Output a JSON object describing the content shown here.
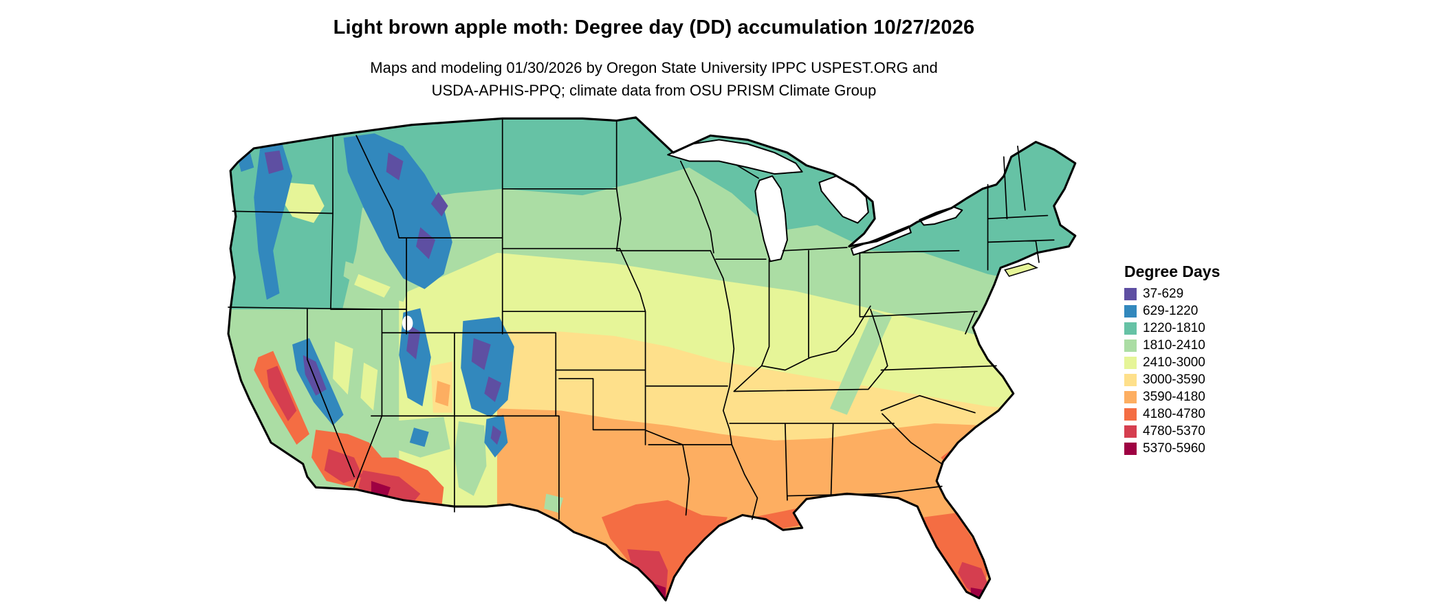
{
  "header": {
    "title": "Light brown apple moth: Degree day (DD) accumulation 10/27/2026",
    "subtitle_line1": "Maps and modeling 01/30/2026 by Oregon State University IPPC USPEST.ORG and",
    "subtitle_line2": "USDA-APHIS-PPQ; climate data from OSU PRISM Climate Group"
  },
  "legend": {
    "title": "Degree Days",
    "items": [
      {
        "label": "37-629",
        "color": "#5e4fa2"
      },
      {
        "label": "629-1220",
        "color": "#3288bd"
      },
      {
        "label": "1220-1810",
        "color": "#66c2a5"
      },
      {
        "label": "1810-2410",
        "color": "#abdda4"
      },
      {
        "label": "2410-3000",
        "color": "#e6f598"
      },
      {
        "label": "3000-3590",
        "color": "#fee08b"
      },
      {
        "label": "3590-4180",
        "color": "#fdae61"
      },
      {
        "label": "4180-4780",
        "color": "#f46d43"
      },
      {
        "label": "4780-5370",
        "color": "#d53e4f"
      },
      {
        "label": "5370-5960",
        "color": "#9e0142"
      }
    ]
  },
  "palette": {
    "bin1": "#5e4fa2",
    "bin2": "#3288bd",
    "bin3": "#66c2a5",
    "bin4": "#abdda4",
    "bin5": "#e6f598",
    "bin6": "#fee08b",
    "bin7": "#fdae61",
    "bin8": "#f46d43",
    "bin9": "#d53e4f",
    "bin10": "#9e0142",
    "water": "#ffffff",
    "border": "#000000"
  },
  "chart_data": {
    "type": "heatmap",
    "subtype": "geographic-raster-choropleth",
    "region": "Continental United States",
    "title": "Light brown apple moth: Degree day (DD) accumulation 10/27/2026",
    "legend_title": "Degree Days",
    "value_range": [
      37,
      5960
    ],
    "bins": [
      {
        "label": "37-629",
        "min": 37,
        "max": 629,
        "color": "#5e4fa2"
      },
      {
        "label": "629-1220",
        "min": 629,
        "max": 1220,
        "color": "#3288bd"
      },
      {
        "label": "1220-1810",
        "min": 1220,
        "max": 1810,
        "color": "#66c2a5"
      },
      {
        "label": "1810-2410",
        "min": 1810,
        "max": 2410,
        "color": "#abdda4"
      },
      {
        "label": "2410-3000",
        "min": 2410,
        "max": 3000,
        "color": "#e6f598"
      },
      {
        "label": "3000-3590",
        "min": 3000,
        "max": 3590,
        "color": "#fee08b"
      },
      {
        "label": "3590-4180",
        "min": 3590,
        "max": 4180,
        "color": "#fdae61"
      },
      {
        "label": "4180-4780",
        "min": 4180,
        "max": 4780,
        "color": "#f46d43"
      },
      {
        "label": "4780-5370",
        "min": 4780,
        "max": 5370,
        "color": "#d53e4f"
      },
      {
        "label": "5370-5960",
        "min": 5370,
        "max": 5960,
        "color": "#9e0142"
      }
    ],
    "pattern_summary": "Lowest accumulations (purple/blue) over the Rockies, Sierra Nevada and Cascades; teal across the northern tier, Great Lakes and New England; greens and pale yellows across the Midwest and mid-Atlantic; orange across the southern states; highest accumulations (red/maroon) in the California Central Valley, southern Arizona/California deserts, south Texas and south Florida."
  }
}
